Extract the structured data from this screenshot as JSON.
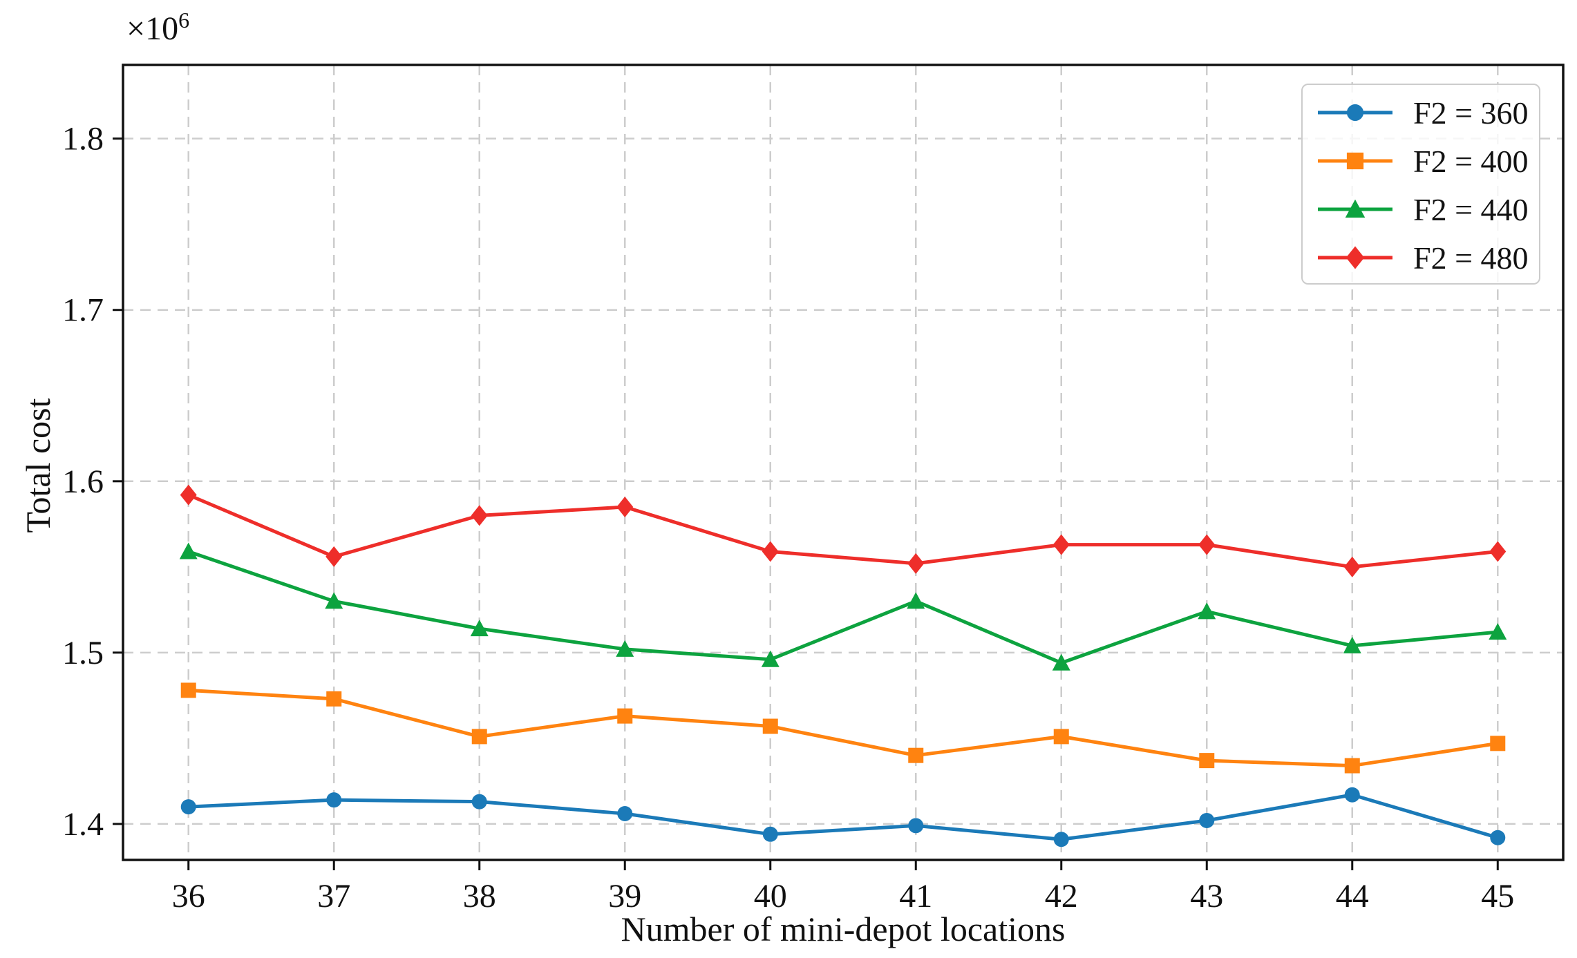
{
  "figure": {
    "background": "#ffffff"
  },
  "chart_data": {
    "type": "line",
    "title": "",
    "xlabel": "Number of mini-depot locations",
    "ylabel": "Total cost",
    "y_offset_base": "×10",
    "y_offset_exponent": "6",
    "y_value_multiplier": 1000000,
    "x": [
      36,
      37,
      38,
      39,
      40,
      41,
      42,
      43,
      44,
      45
    ],
    "xtick_labels": [
      "36",
      "37",
      "38",
      "39",
      "40",
      "41",
      "42",
      "43",
      "44",
      "45"
    ],
    "ytick_values": [
      1.4,
      1.5,
      1.6,
      1.7,
      1.8
    ],
    "ytick_labels": [
      "1.4",
      "1.5",
      "1.6",
      "1.7",
      "1.8"
    ],
    "xlim": [
      35.55,
      45.45
    ],
    "ylim": [
      1.379,
      1.843
    ],
    "grid": true,
    "grid_style": "dashed",
    "legend_location": "upper right",
    "series": [
      {
        "name": "F2 = 360",
        "color": "#1b7ab8",
        "marker": "circle",
        "values": [
          1.41,
          1.414,
          1.413,
          1.406,
          1.394,
          1.399,
          1.391,
          1.402,
          1.417,
          1.392
        ]
      },
      {
        "name": "F2 = 400",
        "color": "#ff8310",
        "marker": "square",
        "values": [
          1.478,
          1.473,
          1.451,
          1.463,
          1.457,
          1.44,
          1.451,
          1.437,
          1.434,
          1.447
        ]
      },
      {
        "name": "F2 = 440",
        "color": "#0da33f",
        "marker": "triangle",
        "values": [
          1.559,
          1.53,
          1.514,
          1.502,
          1.496,
          1.53,
          1.494,
          1.524,
          1.504,
          1.512
        ]
      },
      {
        "name": "F2 = 480",
        "color": "#ee2e2a",
        "marker": "diamond",
        "values": [
          1.592,
          1.556,
          1.58,
          1.585,
          1.559,
          1.552,
          1.563,
          1.563,
          1.55,
          1.559
        ]
      }
    ],
    "style": {
      "grid_color": "#cdcdcd",
      "spine_color": "#111111",
      "tick_color": "#111111",
      "tick_label_color": "#111111"
    }
  }
}
